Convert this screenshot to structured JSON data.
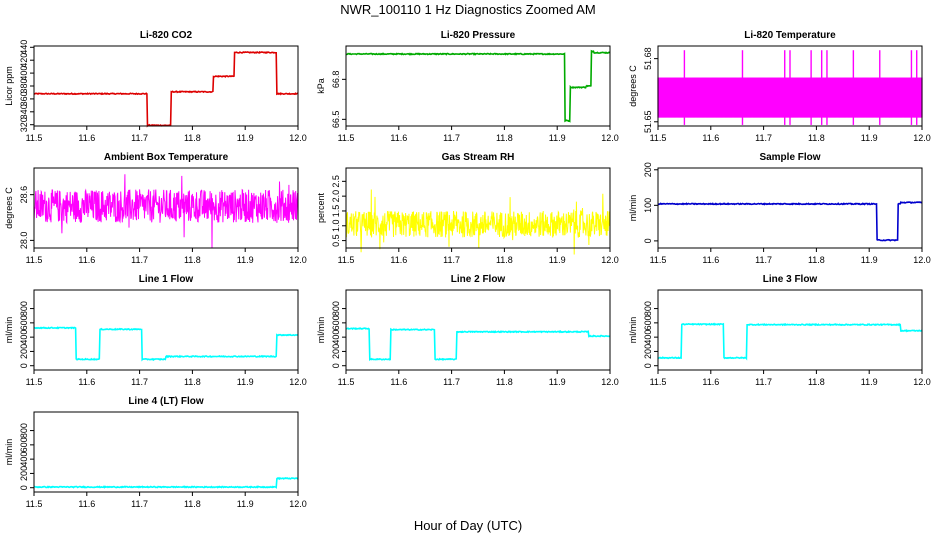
{
  "page": {
    "title": "NWR_100110  1 Hz Diagnostics Zoomed AM",
    "xlabel": "Hour of Day (UTC)"
  },
  "chart_data": [
    {
      "type": "line",
      "title": "Li-820 CO2",
      "ylabel": "Licor ppm",
      "color": "#dd0000",
      "noise": "low",
      "xlim": [
        11.5,
        12.0
      ],
      "xticks": [
        11.5,
        11.6,
        11.7,
        11.8,
        11.9,
        12.0
      ],
      "ylim": [
        318,
        442
      ],
      "yticks": [
        320,
        340,
        360,
        380,
        400,
        420,
        440
      ],
      "steps": [
        [
          11.5,
          11.715,
          368
        ],
        [
          11.715,
          11.76,
          319
        ],
        [
          11.76,
          11.8,
          371
        ],
        [
          11.8,
          11.84,
          371
        ],
        [
          11.84,
          11.88,
          395
        ],
        [
          11.88,
          11.96,
          432
        ],
        [
          11.96,
          12.0,
          368
        ]
      ]
    },
    {
      "type": "line",
      "title": "Li-820 Pressure",
      "ylabel": "kPa",
      "color": "#00aa00",
      "noise": "low",
      "xlim": [
        11.5,
        12.0
      ],
      "xticks": [
        11.5,
        11.6,
        11.7,
        11.8,
        11.9,
        12.0
      ],
      "ylim": [
        66.45,
        67.05
      ],
      "yticks": [
        66.5,
        66.8
      ],
      "steps": [
        [
          11.5,
          11.915,
          66.99
        ],
        [
          11.915,
          11.925,
          66.49
        ],
        [
          11.925,
          11.955,
          66.74
        ],
        [
          11.955,
          11.965,
          66.75
        ],
        [
          11.965,
          11.97,
          67.01
        ],
        [
          11.97,
          12.0,
          67.0
        ]
      ]
    },
    {
      "type": "line",
      "title": "Li-820 Temperature",
      "ylabel": "degrees C",
      "color": "#ff00ff",
      "noise": "band",
      "xlim": [
        11.5,
        12.0
      ],
      "xticks": [
        11.5,
        11.6,
        11.7,
        11.8,
        11.9,
        12.0
      ],
      "ylim": [
        51.648,
        51.686
      ],
      "yticks": [
        51.65,
        51.68
      ],
      "band": [
        51.652,
        51.671
      ],
      "spikes": [
        11.55,
        11.66,
        11.74,
        11.75,
        11.79,
        11.81,
        11.82,
        11.87,
        11.92,
        11.98,
        11.99
      ],
      "spike_top": 51.684
    },
    {
      "type": "line",
      "title": "Ambient Box Temperature",
      "ylabel": "degrees C",
      "color": "#ff00ff",
      "noise": "high",
      "xlim": [
        11.5,
        12.0
      ],
      "xticks": [
        11.5,
        11.6,
        11.7,
        11.8,
        11.9,
        12.0
      ],
      "ylim": [
        27.9,
        28.95
      ],
      "yticks": [
        28.0,
        28.6
      ],
      "steps": [
        [
          11.5,
          12.0,
          28.45
        ]
      ],
      "amp": 0.22
    },
    {
      "type": "line",
      "title": "Gas Stream RH",
      "ylabel": "percent",
      "color": "#ffff00",
      "noise": "high",
      "xlim": [
        11.5,
        12.0
      ],
      "xticks": [
        11.5,
        11.6,
        11.7,
        11.8,
        11.9,
        12.0
      ],
      "ylim": [
        0.25,
        2.95
      ],
      "yticks": [
        0.5,
        1.0,
        1.5,
        2.0,
        2.5
      ],
      "steps": [
        [
          11.5,
          12.0,
          1.05
        ]
      ],
      "amp": 0.45
    },
    {
      "type": "line",
      "title": "Sample Flow",
      "ylabel": "ml/min",
      "color": "#0000cc",
      "noise": "low",
      "xlim": [
        11.5,
        12.0
      ],
      "xticks": [
        11.5,
        11.6,
        11.7,
        11.8,
        11.9,
        12.0
      ],
      "ylim": [
        -20,
        205
      ],
      "yticks": [
        0,
        100,
        200
      ],
      "steps": [
        [
          11.5,
          11.915,
          104
        ],
        [
          11.915,
          11.955,
          2
        ],
        [
          11.955,
          11.96,
          104
        ],
        [
          11.96,
          12.0,
          108
        ]
      ]
    },
    {
      "type": "line",
      "title": "Line 1 Flow",
      "ylabel": "ml/min",
      "color": "#00ffff",
      "noise": "low",
      "xlim": [
        11.5,
        12.0
      ],
      "xticks": [
        11.5,
        11.6,
        11.7,
        11.8,
        11.9,
        12.0
      ],
      "ylim": [
        -60,
        1060
      ],
      "yticks": [
        0,
        200,
        400,
        600,
        800
      ],
      "steps": [
        [
          11.5,
          11.58,
          530
        ],
        [
          11.58,
          11.625,
          90
        ],
        [
          11.625,
          11.705,
          510
        ],
        [
          11.705,
          11.75,
          90
        ],
        [
          11.75,
          11.96,
          130
        ],
        [
          11.96,
          12.0,
          430
        ]
      ]
    },
    {
      "type": "line",
      "title": "Line 2 Flow",
      "ylabel": "ml/min",
      "color": "#00ffff",
      "noise": "low",
      "xlim": [
        11.5,
        12.0
      ],
      "xticks": [
        11.5,
        11.6,
        11.7,
        11.8,
        11.9,
        12.0
      ],
      "ylim": [
        -60,
        1060
      ],
      "yticks": [
        0,
        200,
        400,
        600,
        800
      ],
      "steps": [
        [
          11.5,
          11.545,
          520
        ],
        [
          11.545,
          11.585,
          90
        ],
        [
          11.585,
          11.668,
          505
        ],
        [
          11.668,
          11.71,
          90
        ],
        [
          11.71,
          11.96,
          475
        ],
        [
          11.96,
          12.0,
          415
        ]
      ]
    },
    {
      "type": "line",
      "title": "Line 3 Flow",
      "ylabel": "ml/min",
      "color": "#00ffff",
      "noise": "low",
      "xlim": [
        11.5,
        12.0
      ],
      "xticks": [
        11.5,
        11.6,
        11.7,
        11.8,
        11.9,
        12.0
      ],
      "ylim": [
        -60,
        1060
      ],
      "yticks": [
        0,
        200,
        400,
        600,
        800
      ],
      "steps": [
        [
          11.5,
          11.545,
          110
        ],
        [
          11.545,
          11.625,
          580
        ],
        [
          11.625,
          11.668,
          110
        ],
        [
          11.668,
          11.96,
          575
        ],
        [
          11.96,
          12.0,
          490
        ]
      ]
    },
    {
      "type": "line",
      "title": "Line 4 (LT) Flow",
      "ylabel": "ml/min",
      "color": "#00ffff",
      "noise": "low",
      "xlim": [
        11.5,
        12.0
      ],
      "xticks": [
        11.5,
        11.6,
        11.7,
        11.8,
        11.9,
        12.0
      ],
      "ylim": [
        -60,
        1060
      ],
      "yticks": [
        0,
        200,
        400,
        600,
        800
      ],
      "steps": [
        [
          11.5,
          11.96,
          10
        ],
        [
          11.96,
          12.0,
          130
        ]
      ]
    }
  ]
}
